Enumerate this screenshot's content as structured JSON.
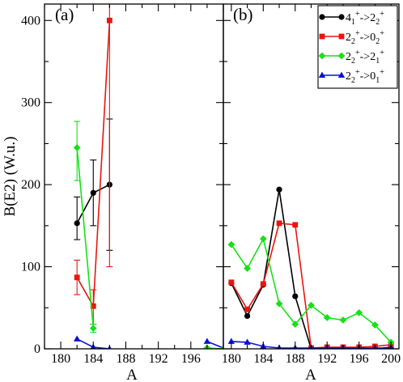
{
  "chart_data": [
    {
      "type": "line",
      "panel_label": "(a)",
      "xlabel": "A",
      "ylabel": "B(E2) (W.u.)",
      "xlim": [
        178,
        200
      ],
      "ylim": [
        0,
        420
      ],
      "x_ticks": [
        "180",
        "184",
        "188",
        "192",
        "196"
      ],
      "y_ticks": [
        "0",
        "100",
        "200",
        "300",
        "400"
      ],
      "series": [
        {
          "key": "s41",
          "color": "#000000",
          "marker": "circle",
          "points": [
            [
              182,
              153,
              133,
              185
            ],
            [
              184,
              190,
              150,
              230
            ],
            [
              186,
              200,
              120,
              280
            ]
          ]
        },
        {
          "key": "s20",
          "color": "#e8160f",
          "marker": "square",
          "points": [
            [
              182,
              87,
              66,
              108
            ],
            [
              184,
              52,
              30,
              72
            ],
            [
              186,
              400,
              100,
              700
            ]
          ]
        },
        {
          "key": "s21",
          "color": "#16e116",
          "marker": "diamond",
          "points": [
            [
              182,
              245,
              205,
              277
            ],
            [
              184,
              25,
              20,
              30
            ]
          ]
        },
        {
          "key": "s01",
          "color": "#0a10d6",
          "marker": "triangle",
          "points": [
            [
              182,
              12
            ],
            [
              184,
              2
            ],
            [
              186,
              0
            ]
          ],
          "points_extra": [
            [
              198,
              9
            ],
            [
              200,
              1
            ]
          ]
        },
        {
          "key": "s21b",
          "color": "#16e116",
          "marker": "diamond",
          "points": [
            [
              198,
              1
            ],
            [
              200,
              0
            ]
          ]
        }
      ]
    },
    {
      "type": "line",
      "panel_label": "(b)",
      "xlabel": "A",
      "xlim": [
        179,
        201
      ],
      "ylim": [
        0,
        420
      ],
      "x_ticks": [
        "180",
        "184",
        "188",
        "192",
        "196",
        "200"
      ],
      "legend_position": "top-right",
      "series": [
        {
          "key": "s41",
          "color": "#000000",
          "marker": "circle",
          "legend": {
            "base1": "4",
            "sub1": "1",
            "sup1": "+",
            "arrow": "->",
            "base2": "2",
            "sub2": "2",
            "sup2": "+"
          },
          "points": [
            [
              180,
              80
            ],
            [
              182,
              40
            ],
            [
              184,
              78
            ],
            [
              186,
              194
            ],
            [
              188,
              64
            ],
            [
              190,
              0
            ],
            [
              192,
              0
            ],
            [
              194,
              0
            ],
            [
              196,
              0
            ],
            [
              198,
              0
            ],
            [
              200,
              2
            ]
          ]
        },
        {
          "key": "s20",
          "color": "#e8160f",
          "marker": "square",
          "legend": {
            "base1": "2",
            "sub1": "2",
            "sup1": "+",
            "arrow": "->",
            "base2": "0",
            "sub2": "2",
            "sup2": "+"
          },
          "points": [
            [
              180,
              81
            ],
            [
              182,
              48
            ],
            [
              184,
              79
            ],
            [
              186,
              153
            ],
            [
              188,
              151
            ],
            [
              190,
              1
            ],
            [
              192,
              2
            ],
            [
              194,
              2
            ],
            [
              196,
              2
            ],
            [
              198,
              3
            ],
            [
              200,
              5
            ]
          ]
        },
        {
          "key": "s21",
          "color": "#16e116",
          "marker": "diamond",
          "legend": {
            "base1": "2",
            "sub1": "2",
            "sup1": "+",
            "arrow": "->",
            "base2": "2",
            "sub2": "1",
            "sup2": "+"
          },
          "points": [
            [
              180,
              127
            ],
            [
              182,
              98
            ],
            [
              184,
              134
            ],
            [
              186,
              55
            ],
            [
              188,
              30
            ],
            [
              190,
              53
            ],
            [
              192,
              38
            ],
            [
              194,
              35
            ],
            [
              196,
              44
            ],
            [
              198,
              29
            ],
            [
              200,
              8
            ]
          ]
        },
        {
          "key": "s01",
          "color": "#0a10d6",
          "marker": "triangle",
          "legend": {
            "base1": "2",
            "sub1": "2",
            "sup1": "+",
            "arrow": "->",
            "base2": "0",
            "sub2": "1",
            "sup2": "+"
          },
          "points": [
            [
              180,
              9
            ],
            [
              182,
              8
            ],
            [
              184,
              3
            ],
            [
              186,
              1
            ],
            [
              188,
              1
            ],
            [
              190,
              1
            ],
            [
              192,
              1
            ],
            [
              194,
              1
            ],
            [
              196,
              1
            ],
            [
              198,
              1
            ],
            [
              200,
              1
            ]
          ]
        }
      ]
    }
  ]
}
